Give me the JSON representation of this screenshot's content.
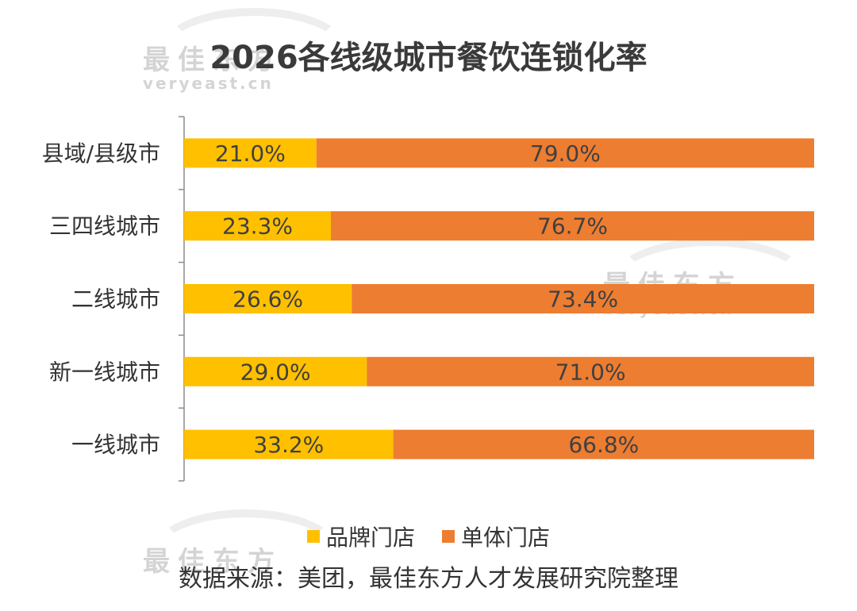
{
  "watermark": {
    "zh": "最佳东方",
    "en": "veryeast.cn"
  },
  "chart_data": {
    "type": "bar",
    "orientation": "horizontal",
    "stacked": true,
    "title": "2026各线级城市餐饮连锁化率",
    "categories": [
      "县域/县级市",
      "三四线城市",
      "二线城市",
      "新一线城市",
      "一线城市"
    ],
    "series": [
      {
        "name": "品牌门店",
        "color": "#FFC000",
        "values": [
          21.0,
          23.3,
          26.6,
          29.0,
          33.2
        ],
        "labels": [
          "21.0%",
          "23.3%",
          "26.6%",
          "29.0%",
          "33.2%"
        ]
      },
      {
        "name": "单体门店",
        "color": "#ED7D31",
        "values": [
          79.0,
          76.7,
          73.4,
          71.0,
          66.8
        ],
        "labels": [
          "79.0%",
          "76.7%",
          "73.4%",
          "71.0%",
          "66.8%"
        ]
      }
    ],
    "xlim": [
      0,
      100
    ],
    "legend_position": "bottom",
    "grid": false
  },
  "source": "数据来源：美团，最佳东方人才发展研究院整理"
}
